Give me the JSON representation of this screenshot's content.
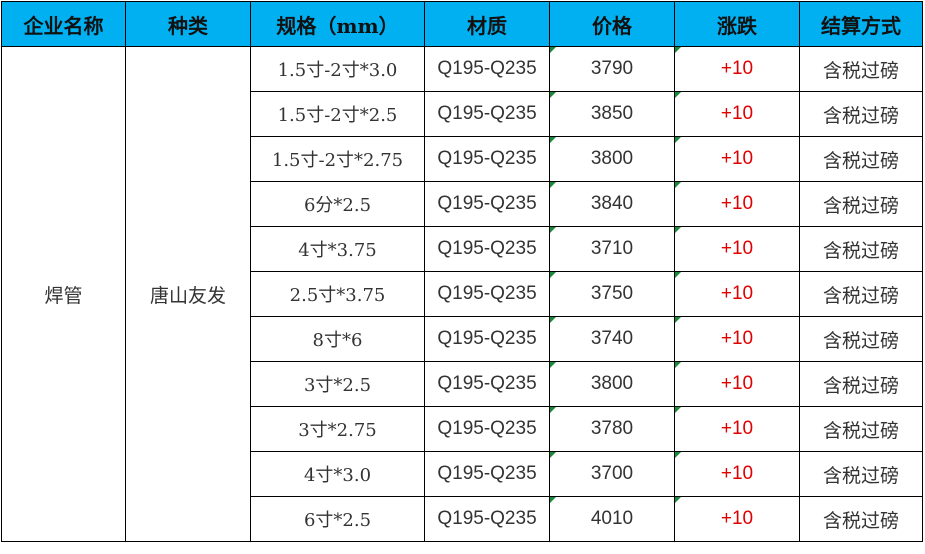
{
  "headers": [
    "企业名称",
    "种类",
    "规格（mm）",
    "材质",
    "价格",
    "涨跌",
    "结算方式"
  ],
  "company": "焊管",
  "category": "唐山友发",
  "colors": {
    "header_bg": "#00B0F0",
    "change_color": "#e00000"
  },
  "rows": [
    {
      "spec": "1.5寸-2寸*3.0",
      "material": "Q195-Q235",
      "price": "3790",
      "change": "+10",
      "settlement": "含税过磅"
    },
    {
      "spec": "1.5寸-2寸*2.5",
      "material": "Q195-Q235",
      "price": "3850",
      "change": "+10",
      "settlement": "含税过磅"
    },
    {
      "spec": "1.5寸-2寸*2.75",
      "material": "Q195-Q235",
      "price": "3800",
      "change": "+10",
      "settlement": "含税过磅"
    },
    {
      "spec": "6分*2.5",
      "material": "Q195-Q235",
      "price": "3840",
      "change": "+10",
      "settlement": "含税过磅"
    },
    {
      "spec": "4寸*3.75",
      "material": "Q195-Q235",
      "price": "3710",
      "change": "+10",
      "settlement": "含税过磅"
    },
    {
      "spec": "2.5寸*3.75",
      "material": "Q195-Q235",
      "price": "3750",
      "change": "+10",
      "settlement": "含税过磅"
    },
    {
      "spec": "8寸*6",
      "material": "Q195-Q235",
      "price": "3740",
      "change": "+10",
      "settlement": "含税过磅"
    },
    {
      "spec": "3寸*2.5",
      "material": "Q195-Q235",
      "price": "3800",
      "change": "+10",
      "settlement": "含税过磅"
    },
    {
      "spec": "3寸*2.75",
      "material": "Q195-Q235",
      "price": "3780",
      "change": "+10",
      "settlement": "含税过磅"
    },
    {
      "spec": "4寸*3.0",
      "material": "Q195-Q235",
      "price": "3700",
      "change": "+10",
      "settlement": "含税过磅"
    },
    {
      "spec": "6寸*2.5",
      "material": "Q195-Q235",
      "price": "4010",
      "change": "+10",
      "settlement": "含税过磅"
    }
  ]
}
